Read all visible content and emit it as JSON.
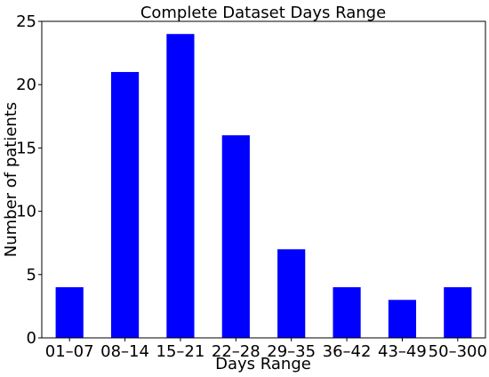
{
  "chart_data": {
    "type": "bar",
    "title": "Complete Dataset Days Range",
    "xlabel": "Days Range",
    "ylabel": "Number of patients",
    "categories": [
      "01–07",
      "08–14",
      "15–21",
      "22–28",
      "29–35",
      "36–42",
      "43–49",
      "50–300"
    ],
    "values": [
      4,
      21,
      24,
      16,
      7,
      4,
      3,
      4
    ],
    "ylim": [
      0,
      25
    ],
    "yticks": [
      0,
      5,
      10,
      15,
      20,
      25
    ],
    "bar_color": "#0000ff",
    "grid": false,
    "legend": "none"
  }
}
